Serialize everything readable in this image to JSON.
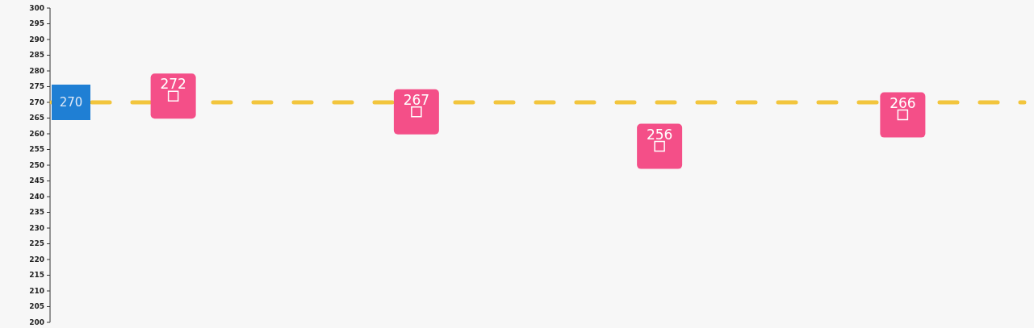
{
  "chart_data": {
    "type": "scatter",
    "categories": [
      null,
      null,
      null,
      null
    ],
    "series": [
      {
        "color": "#f44f88",
        "values": [
          272,
          267,
          256,
          266
        ]
      }
    ],
    "marker": "square",
    "data_labels": true,
    "ylim": [
      200,
      300
    ],
    "yticks": [
      300,
      295,
      290,
      285,
      280,
      275,
      270,
      265,
      260,
      255,
      250,
      245,
      240,
      235,
      230,
      225,
      220,
      215,
      210,
      205,
      200
    ],
    "tick_labels": "y",
    "grid": false,
    "ref_lines": [
      {
        "axis": "y",
        "value": 270,
        "label": "270",
        "color": "#f2c53d",
        "line_style": "dashed"
      }
    ]
  }
}
